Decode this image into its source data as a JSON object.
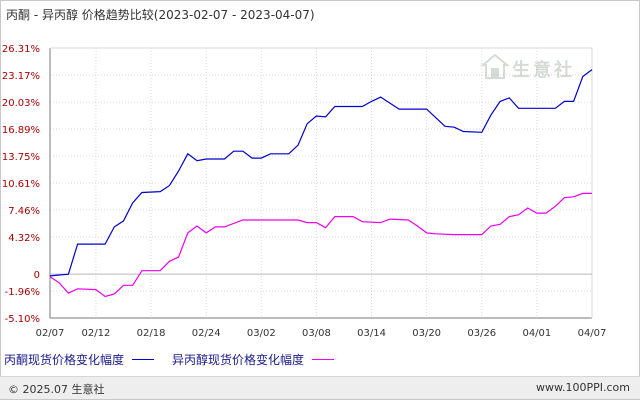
{
  "title": "丙酮 - 异丙醇 价格趋势比较(2023-02-07 - 2023-04-07)",
  "footer": {
    "copyright": "© 2025.07 生意社",
    "url": "www.100PPI.com"
  },
  "watermark": {
    "text": "生意社"
  },
  "colors": {
    "series1": "#0000cc",
    "series2": "#ee00ee",
    "grid": "#d9d9d9",
    "axis": "#7a7a7a",
    "tick_text": "#aa0000"
  },
  "chart_data": {
    "type": "line",
    "title": "丙酮 - 异丙醇 价格趋势比较(2023-02-07 - 2023-04-07)",
    "ylim": [
      -5.1,
      26.31
    ],
    "yticks": [
      "26.31%",
      "23.17%",
      "20.03%",
      "16.89%",
      "13.75%",
      "10.61%",
      "7.46%",
      "4.32%",
      "0",
      "-1.96%",
      "-5.10%"
    ],
    "ytick_values": [
      26.31,
      23.17,
      20.03,
      16.89,
      13.75,
      10.61,
      7.46,
      4.32,
      0,
      -1.96,
      -5.1
    ],
    "xticks": [
      "02/07",
      "02/12",
      "02/18",
      "02/24",
      "03/02",
      "03/08",
      "03/14",
      "03/20",
      "03/26",
      "04/01",
      "04/07"
    ],
    "xtick_index": [
      0,
      5,
      11,
      17,
      23,
      29,
      35,
      41,
      47,
      53,
      59
    ],
    "n_days": 60,
    "legend_position": "bottom",
    "grid": true,
    "series": [
      {
        "name": "丙酮现货价格变化幅度",
        "points": [
          [
            0,
            -0.2
          ],
          [
            2,
            0
          ],
          [
            3,
            3.5
          ],
          [
            6,
            3.5
          ],
          [
            7,
            5.5
          ],
          [
            8,
            6.2
          ],
          [
            9,
            8.3
          ],
          [
            10,
            9.5
          ],
          [
            12,
            9.6
          ],
          [
            13,
            10.3
          ],
          [
            14,
            12
          ],
          [
            15,
            14
          ],
          [
            16,
            13.2
          ],
          [
            17,
            13.4
          ],
          [
            19,
            13.4
          ],
          [
            20,
            14.3
          ],
          [
            21,
            14.3
          ],
          [
            22,
            13.5
          ],
          [
            23,
            13.5
          ],
          [
            24,
            14
          ],
          [
            26,
            14
          ],
          [
            27,
            15
          ],
          [
            28,
            17.5
          ],
          [
            29,
            18.4
          ],
          [
            30,
            18.3
          ],
          [
            31,
            19.5
          ],
          [
            34,
            19.5
          ],
          [
            35,
            20.1
          ],
          [
            36,
            20.6
          ],
          [
            38,
            19.2
          ],
          [
            41,
            19.2
          ],
          [
            42,
            18.2
          ],
          [
            43,
            17.2
          ],
          [
            44,
            17.1
          ],
          [
            45,
            16.6
          ],
          [
            47,
            16.5
          ],
          [
            48,
            18.5
          ],
          [
            49,
            20.1
          ],
          [
            50,
            20.5
          ],
          [
            51,
            19.3
          ],
          [
            53,
            19.3
          ],
          [
            55,
            19.3
          ],
          [
            56,
            20.1
          ],
          [
            57,
            20.1
          ],
          [
            58,
            23
          ],
          [
            59,
            23.8
          ]
        ]
      },
      {
        "name": "异丙醇现货价格变化幅度",
        "points": [
          [
            0,
            -0.3
          ],
          [
            1,
            -1
          ],
          [
            2,
            -2.2
          ],
          [
            3,
            -1.7
          ],
          [
            5,
            -1.8
          ],
          [
            6,
            -2.6
          ],
          [
            7,
            -2.3
          ],
          [
            8,
            -1.3
          ],
          [
            9,
            -1.3
          ],
          [
            10,
            0.4
          ],
          [
            12,
            0.4
          ],
          [
            13,
            1.5
          ],
          [
            14,
            2
          ],
          [
            15,
            4.8
          ],
          [
            16,
            5.6
          ],
          [
            17,
            4.8
          ],
          [
            18,
            5.5
          ],
          [
            19,
            5.5
          ],
          [
            21,
            6.3
          ],
          [
            23,
            6.3
          ],
          [
            27,
            6.3
          ],
          [
            28,
            6
          ],
          [
            29,
            6
          ],
          [
            30,
            5.4
          ],
          [
            31,
            6.7
          ],
          [
            33,
            6.7
          ],
          [
            34,
            6.1
          ],
          [
            36,
            6
          ],
          [
            37,
            6.4
          ],
          [
            39,
            6.3
          ],
          [
            40,
            5.6
          ],
          [
            41,
            4.8
          ],
          [
            42,
            4.7
          ],
          [
            44,
            4.6
          ],
          [
            47,
            4.6
          ],
          [
            48,
            5.6
          ],
          [
            49,
            5.8
          ],
          [
            50,
            6.7
          ],
          [
            51,
            6.9
          ],
          [
            52,
            7.7
          ],
          [
            53,
            7.1
          ],
          [
            54,
            7.1
          ],
          [
            55,
            7.9
          ],
          [
            56,
            8.9
          ],
          [
            57,
            9
          ],
          [
            58,
            9.4
          ],
          [
            59,
            9.4
          ]
        ]
      }
    ]
  }
}
